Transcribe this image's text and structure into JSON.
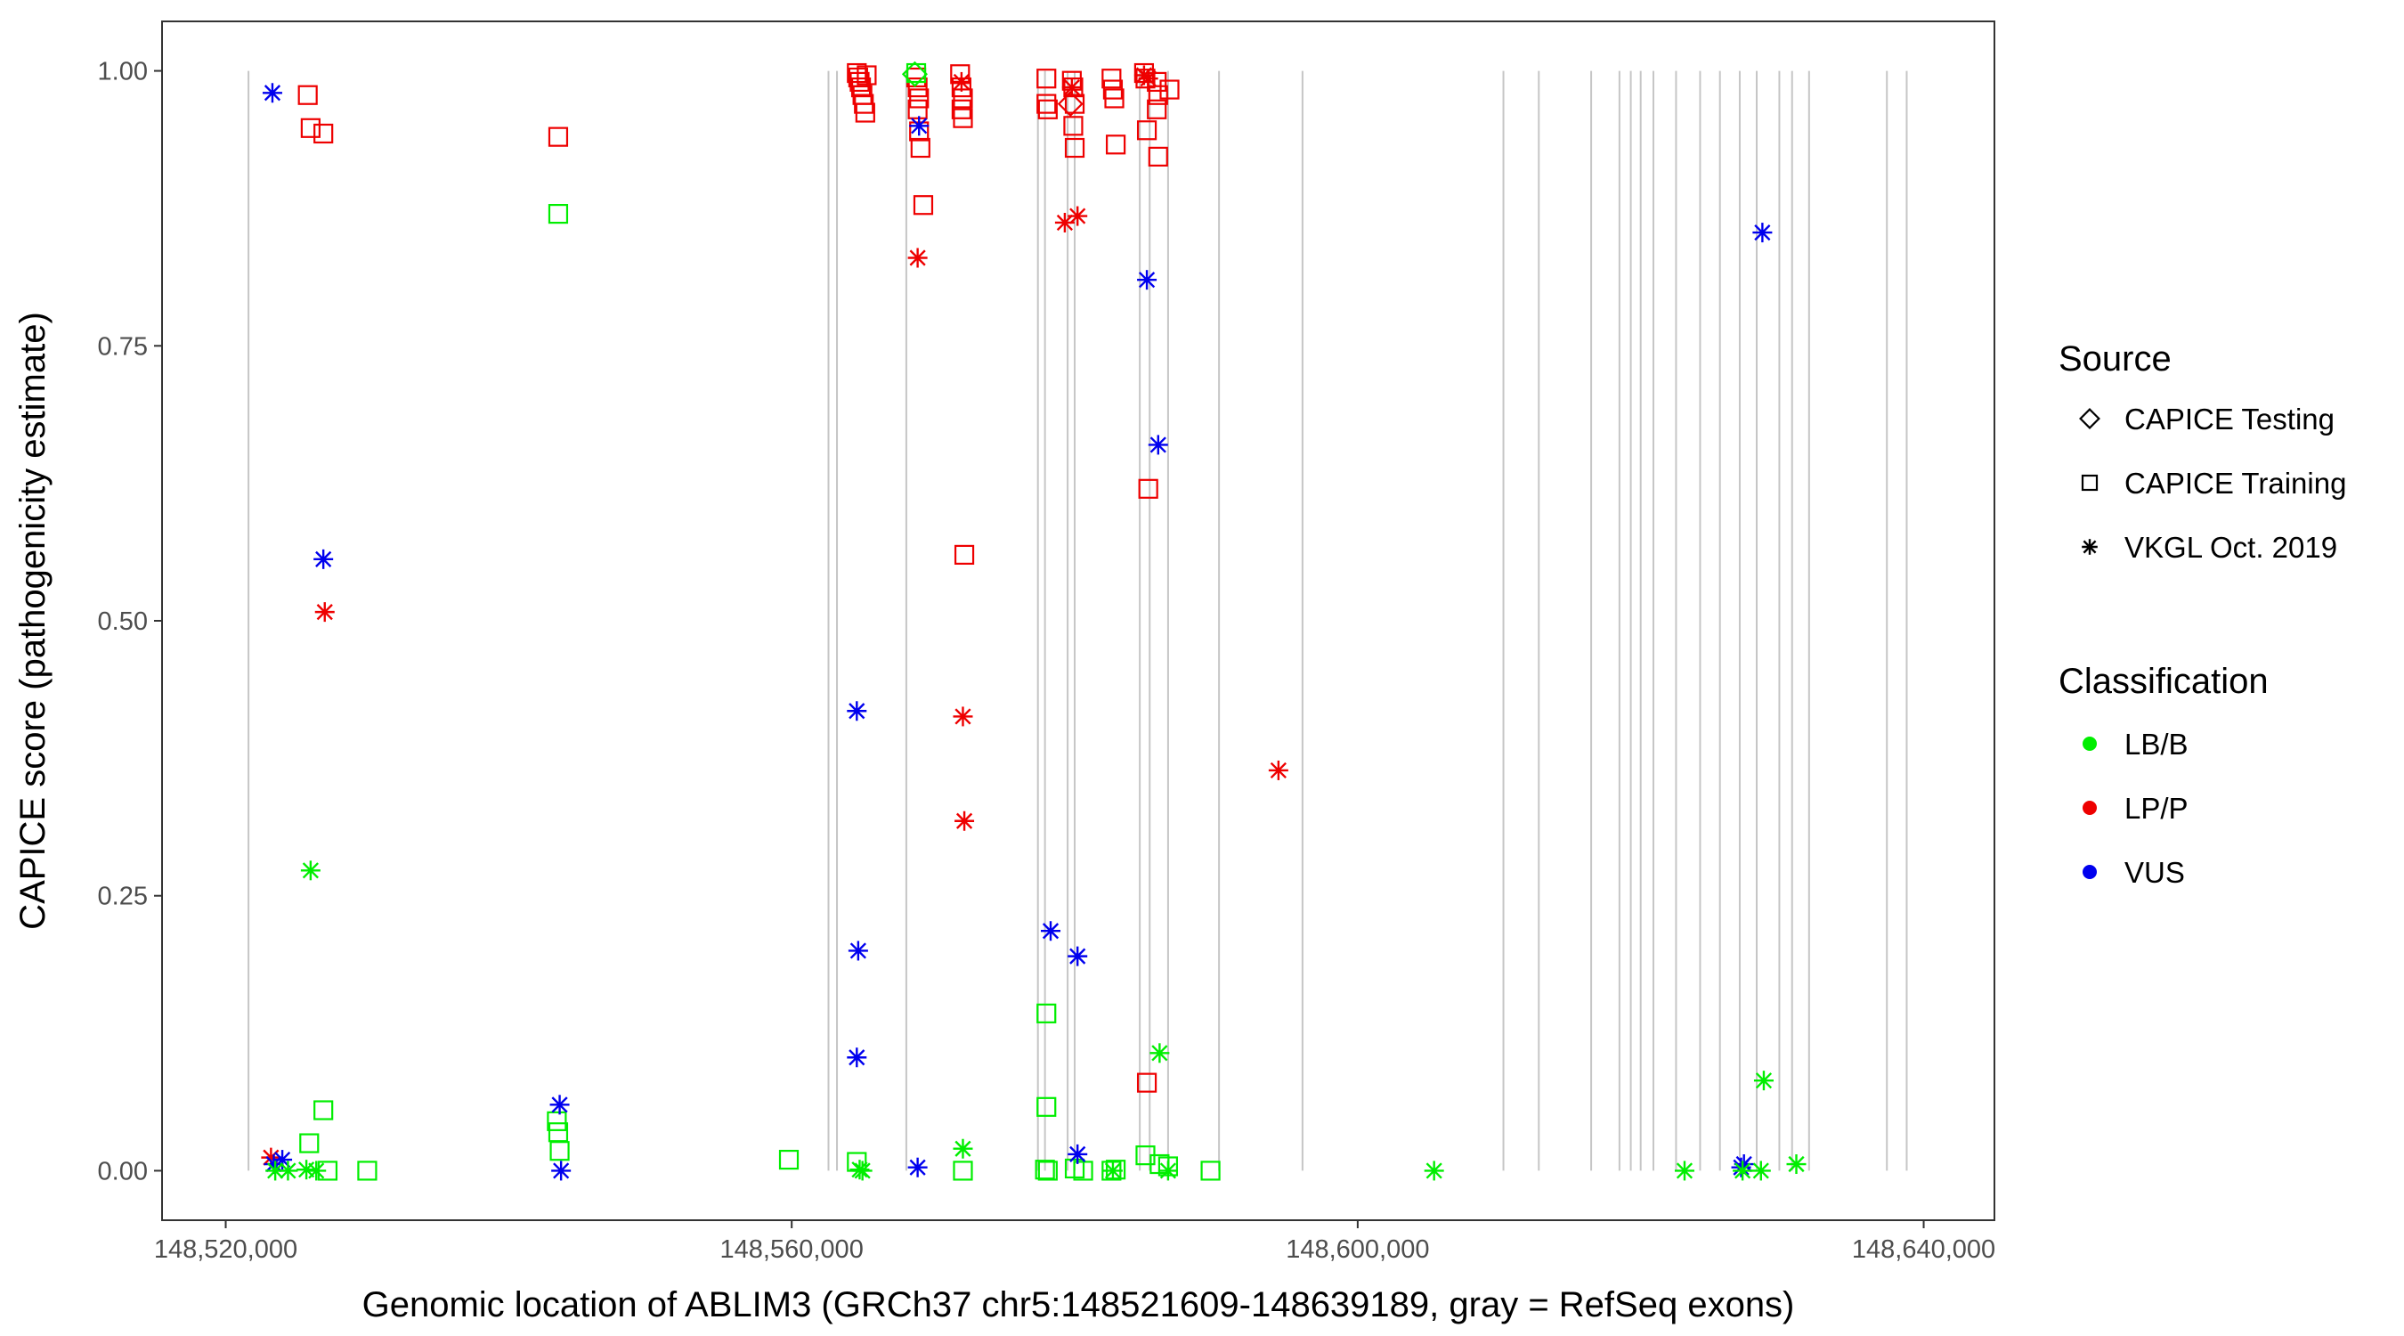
{
  "chart_data": {
    "type": "scatter",
    "title": "",
    "xlabel": "Genomic location of ABLIM3 (GRCh37 chr5:148521609-148639189, gray = RefSeq exons)",
    "ylabel": "CAPICE score (pathogenicity estimate)",
    "xlim": [
      148515500,
      148645000
    ],
    "ylim": [
      -0.045,
      1.045
    ],
    "x_ticks": [
      148520000,
      148560000,
      148600000,
      148640000
    ],
    "x_tick_labels": [
      "148,520,000",
      "148,560,000",
      "148,600,000",
      "148,640,000"
    ],
    "y_ticks": [
      0,
      0.25,
      0.5,
      0.75,
      1.0
    ],
    "y_tick_labels": [
      "0.00",
      "0.25",
      "0.50",
      "0.75",
      "1.00"
    ],
    "grid": false,
    "exons": [
      148521609,
      148562600,
      148563200,
      148568100,
      148577400,
      148577900,
      148579500,
      148580000,
      148584600,
      148585300,
      148586600,
      148590200,
      148596100,
      148610300,
      148612800,
      148616500,
      148618500,
      148619300,
      148620000,
      148620900,
      148622500,
      148624200,
      148625600,
      148627000,
      148628200,
      148629800,
      148630700,
      148631900,
      148637400,
      148638800
    ],
    "legend": {
      "position": "right",
      "source_title": "Source",
      "source_items": [
        {
          "label": "CAPICE Testing",
          "shape": "diamond"
        },
        {
          "label": "CAPICE Training",
          "shape": "square"
        },
        {
          "label": "VKGL Oct. 2019",
          "shape": "asterisk"
        }
      ],
      "class_title": "Classification",
      "class_items": [
        {
          "label": "LB/B",
          "color": "#00ee00"
        },
        {
          "label": "LP/P",
          "color": "#ee0000"
        },
        {
          "label": "VUS",
          "color": "#0000ee"
        }
      ]
    },
    "colors": {
      "LB/B": "#00ee00",
      "LP/P": "#ee0000",
      "VUS": "#0000ee"
    },
    "series": [
      {
        "name": "CAPICE Training / LP/P",
        "source": "CAPICE Training",
        "classification": "LP/P",
        "points": [
          [
            148525800,
            0.978
          ],
          [
            148526000,
            0.948
          ],
          [
            148526900,
            0.943
          ],
          [
            148543500,
            0.94
          ],
          [
            148564600,
            0.998
          ],
          [
            148564700,
            0.994
          ],
          [
            148564800,
            0.99
          ],
          [
            148564900,
            0.985
          ],
          [
            148565000,
            0.978
          ],
          [
            148565100,
            0.97
          ],
          [
            148565200,
            0.962
          ],
          [
            148565300,
            0.996
          ],
          [
            148568800,
            0.994
          ],
          [
            148568900,
            0.985
          ],
          [
            148569000,
            0.975
          ],
          [
            148568900,
            0.965
          ],
          [
            148569000,
            0.945
          ],
          [
            148569100,
            0.93
          ],
          [
            148569300,
            0.878
          ],
          [
            148571900,
            0.997
          ],
          [
            148572000,
            0.985
          ],
          [
            148572100,
            0.975
          ],
          [
            148572000,
            0.965
          ],
          [
            148572100,
            0.957
          ],
          [
            148572200,
            0.56
          ],
          [
            148578000,
            0.993
          ],
          [
            148578000,
            0.97
          ],
          [
            148578100,
            0.965
          ],
          [
            148579800,
            0.991
          ],
          [
            148579900,
            0.985
          ],
          [
            148580000,
            0.97
          ],
          [
            148579900,
            0.95
          ],
          [
            148580000,
            0.93
          ],
          [
            148582600,
            0.993
          ],
          [
            148582700,
            0.983
          ],
          [
            148582800,
            0.975
          ],
          [
            148582900,
            0.933
          ],
          [
            148584900,
            0.998
          ],
          [
            148585000,
            0.993
          ],
          [
            148585100,
            0.946
          ],
          [
            148585200,
            0.62
          ],
          [
            148585800,
            0.99
          ],
          [
            148585900,
            0.978
          ],
          [
            148585800,
            0.965
          ],
          [
            148585900,
            0.922
          ],
          [
            148586700,
            0.983
          ],
          [
            148585100,
            0.08
          ]
        ]
      },
      {
        "name": "CAPICE Training / LB/B",
        "source": "CAPICE Training",
        "classification": "LB/B",
        "points": [
          [
            148543500,
            0.87
          ],
          [
            148525900,
            0.025
          ],
          [
            148526900,
            0.055
          ],
          [
            148527200,
            0.0
          ],
          [
            148530000,
            0.0
          ],
          [
            148543400,
            0.045
          ],
          [
            148543500,
            0.035
          ],
          [
            148543600,
            0.018
          ],
          [
            148559800,
            0.01
          ],
          [
            148564600,
            0.008
          ],
          [
            148572100,
            0.0
          ],
          [
            148578000,
            0.143
          ],
          [
            148578000,
            0.058
          ],
          [
            148578100,
            0.0
          ],
          [
            148577900,
            0.001
          ],
          [
            148580000,
            0.002
          ],
          [
            148580600,
            0.0
          ],
          [
            148582600,
            0.0
          ],
          [
            148582900,
            0.001
          ],
          [
            148585000,
            0.014
          ],
          [
            148586000,
            0.006
          ],
          [
            148586600,
            0.004
          ],
          [
            148589600,
            0.0
          ],
          [
            148568800,
            0.998
          ]
        ]
      },
      {
        "name": "CAPICE Testing / LB/B",
        "source": "CAPICE Testing",
        "classification": "LB/B",
        "points": [
          [
            148568700,
            0.997
          ]
        ]
      },
      {
        "name": "CAPICE Testing / LP/P",
        "source": "CAPICE Testing",
        "classification": "LP/P",
        "points": [
          [
            148579700,
            0.97
          ]
        ]
      },
      {
        "name": "VKGL Oct. 2019 / LP/P",
        "source": "VKGL Oct. 2019",
        "classification": "LP/P",
        "points": [
          [
            148523200,
            0.012
          ],
          [
            148527000,
            0.508
          ],
          [
            148568900,
            0.83
          ],
          [
            148572000,
            0.99
          ],
          [
            148572100,
            0.413
          ],
          [
            148572200,
            0.318
          ],
          [
            148579300,
            0.862
          ],
          [
            148580200,
            0.868
          ],
          [
            148584900,
            0.996
          ],
          [
            148585200,
            0.993
          ],
          [
            148594400,
            0.364
          ],
          [
            148579800,
            0.985
          ]
        ]
      },
      {
        "name": "VKGL Oct. 2019 / VUS",
        "source": "VKGL Oct. 2019",
        "classification": "VUS",
        "points": [
          [
            148523300,
            0.98
          ],
          [
            148523400,
            0.006
          ],
          [
            148524000,
            0.01
          ],
          [
            148526900,
            0.556
          ],
          [
            148543600,
            0.06
          ],
          [
            148543700,
            0.0
          ],
          [
            148564600,
            0.418
          ],
          [
            148564700,
            0.2
          ],
          [
            148564600,
            0.103
          ],
          [
            148568900,
            0.003
          ],
          [
            148569000,
            0.95
          ],
          [
            148578300,
            0.218
          ],
          [
            148580200,
            0.195
          ],
          [
            148580200,
            0.015
          ],
          [
            148585100,
            0.81
          ],
          [
            148585900,
            0.66
          ],
          [
            148627100,
            0.003
          ],
          [
            148627300,
            0.006
          ],
          [
            148628600,
            0.853
          ]
        ]
      },
      {
        "name": "VKGL Oct. 2019 / LB/B",
        "source": "VKGL Oct. 2019",
        "classification": "LB/B",
        "points": [
          [
            148526000,
            0.273
          ],
          [
            148523500,
            0.0
          ],
          [
            148524400,
            0.0
          ],
          [
            148525700,
            0.001
          ],
          [
            148526400,
            0.0
          ],
          [
            148565000,
            0.0
          ],
          [
            148564800,
            0.001
          ],
          [
            148572100,
            0.02
          ],
          [
            148582700,
            0.0
          ],
          [
            148586000,
            0.107
          ],
          [
            148586600,
            0.0
          ],
          [
            148605400,
            0.0
          ],
          [
            148623100,
            0.0
          ],
          [
            148627200,
            0.0
          ],
          [
            148628500,
            0.0
          ],
          [
            148628700,
            0.082
          ],
          [
            148631000,
            0.006
          ]
        ]
      }
    ]
  }
}
